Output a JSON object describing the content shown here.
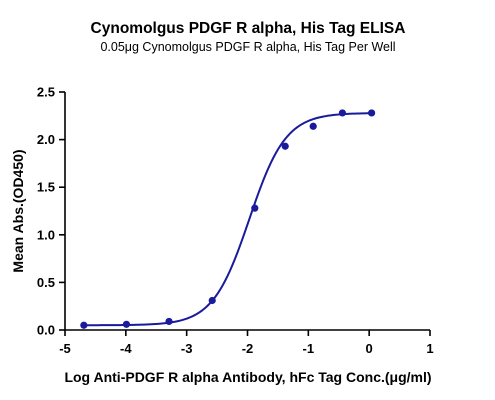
{
  "chart_data": {
    "type": "scatter",
    "title": "Cynomolgus PDGF R alpha, His Tag ELISA",
    "subtitle": "0.05μg Cynomolgus PDGF R alpha, His Tag Per Well",
    "xlabel": "Log Anti-PDGF R alpha Antibody, hFc Tag Conc.(μg/ml)",
    "ylabel": "Mean Abs.(OD450)",
    "xlim": [
      -5,
      1
    ],
    "ylim": [
      0,
      2.5
    ],
    "xticks": [
      -5,
      -4,
      -3,
      -2,
      -1,
      0,
      1
    ],
    "yticks": [
      0.0,
      0.5,
      1.0,
      1.5,
      2.0,
      2.5
    ],
    "xtick_labels": [
      "-5",
      "-4",
      "-3",
      "-2",
      "-1",
      "0",
      "1"
    ],
    "ytick_labels": [
      "0.0",
      "0.5",
      "1.0",
      "1.5",
      "2.0",
      "2.5"
    ],
    "grid": false,
    "color": "#1a1a9c",
    "series": [
      {
        "x": [
          -4.69,
          -3.99,
          -3.29,
          -2.58,
          -1.88,
          -1.38,
          -0.92,
          -0.44,
          0.04
        ],
        "y": [
          0.05,
          0.06,
          0.09,
          0.31,
          1.28,
          1.93,
          2.14,
          2.28,
          2.28
        ],
        "fit": {
          "model": "4PL",
          "bottom": 0.05,
          "top": 2.28,
          "logEC50": -1.97,
          "hill": 1.45,
          "x_range": [
            -4.69,
            0.04
          ]
        }
      }
    ]
  }
}
